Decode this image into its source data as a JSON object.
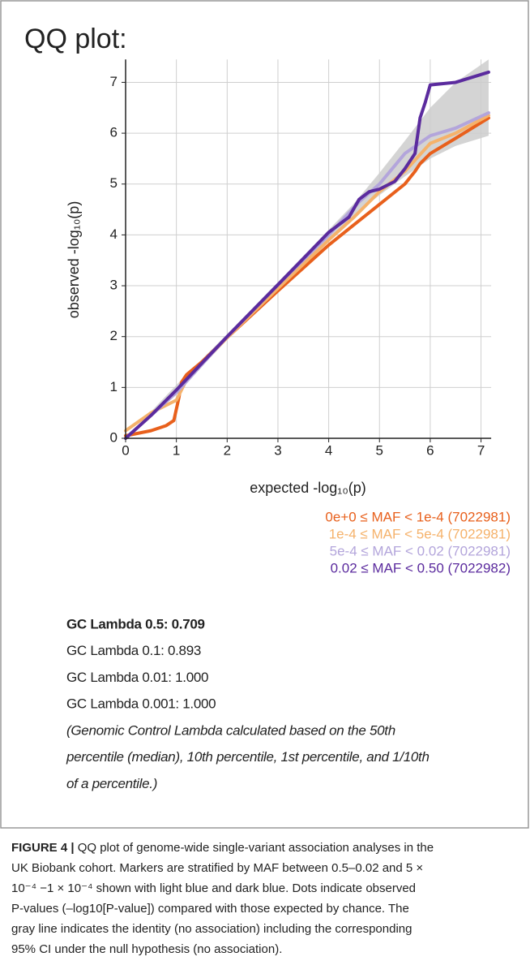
{
  "chart_data": {
    "type": "line",
    "title": "QQ plot:",
    "x_label": "expected -log₁₀(p)",
    "y_label": "observed -log₁₀(p)",
    "xlim": [
      0,
      7.2
    ],
    "ylim": [
      0,
      7.45
    ],
    "xticks": [
      0,
      1,
      2,
      3,
      4,
      5,
      6,
      7
    ],
    "yticks": [
      0,
      1,
      2,
      3,
      4,
      5,
      6,
      7
    ],
    "grid": true,
    "ci_band": {
      "color": "#cccccc",
      "x": [
        0,
        1,
        2,
        3,
        4,
        4.5,
        5,
        5.5,
        6,
        6.5,
        7.15
      ],
      "lower": [
        0,
        0.95,
        1.95,
        2.93,
        3.9,
        4.38,
        4.78,
        5.15,
        5.5,
        5.75,
        5.95
      ],
      "upper": [
        0,
        1.05,
        2.05,
        3.07,
        4.1,
        4.62,
        5.22,
        5.85,
        6.5,
        7.0,
        7.45
      ]
    },
    "series": [
      {
        "name": "0e+0 ≤ MAF < 1e-4 (7022981)",
        "color": "#e8601c",
        "x": [
          0,
          0.5,
          0.8,
          0.95,
          1.05,
          1.1,
          1.2,
          1.5,
          2,
          3,
          4,
          4.5,
          5,
          5.5,
          5.7,
          5.8,
          6,
          6.5,
          7.15
        ],
        "values": [
          0.05,
          0.15,
          0.25,
          0.35,
          0.8,
          1.1,
          1.25,
          1.5,
          1.98,
          2.9,
          3.8,
          4.2,
          4.6,
          5.0,
          5.25,
          5.4,
          5.6,
          5.9,
          6.3
        ]
      },
      {
        "name": "1e-4 ≤ MAF < 5e-4 (7022981)",
        "color": "#f5b26b",
        "x": [
          0,
          0.5,
          1,
          1.2,
          2,
          3,
          4,
          4.5,
          5,
          5.5,
          6,
          6.5,
          7.15
        ],
        "values": [
          0.15,
          0.5,
          0.75,
          1.15,
          1.98,
          2.95,
          3.9,
          4.35,
          4.85,
          5.25,
          5.8,
          6.0,
          6.35
        ]
      },
      {
        "name": "5e-4 ≤ MAF < 0.02 (7022981)",
        "color": "#b3a5db",
        "x": [
          0,
          1,
          2,
          3,
          4,
          4.6,
          5,
          5.5,
          6,
          6.5,
          7.15
        ],
        "values": [
          0,
          0.9,
          2,
          3.02,
          4.0,
          4.65,
          5.0,
          5.6,
          5.95,
          6.1,
          6.4
        ]
      },
      {
        "name": "0.02 ≤ MAF < 0.50 (7022982)",
        "color": "#5b2b9e",
        "x": [
          0,
          0.5,
          1,
          2,
          3,
          4,
          4.4,
          4.6,
          4.8,
          5,
          5.3,
          5.5,
          5.7,
          5.8,
          5.9,
          6,
          6.5,
          7.15
        ],
        "values": [
          0,
          0.45,
          0.95,
          2.0,
          3.02,
          4.05,
          4.35,
          4.7,
          4.85,
          4.9,
          5.05,
          5.3,
          5.6,
          6.3,
          6.6,
          6.95,
          7.0,
          7.2
        ]
      }
    ]
  },
  "stats": {
    "lines": [
      "GC Lambda 0.5: 0.709",
      "GC Lambda 0.1: 0.893",
      "GC Lambda 0.01: 1.000",
      "GC Lambda 0.001: 1.000"
    ],
    "note": [
      "(Genomic Control Lambda calculated based on the 50th",
      "percentile (median), 10th percentile, 1st percentile, and 1/10th",
      "of a percentile.)"
    ]
  },
  "caption": {
    "label": "FIGURE 4 |",
    "lines": [
      " QQ plot of genome-wide single-variant association analyses in the",
      "UK Biobank cohort. Markers are stratified by MAF between 0.5–0.02 and 5 ×",
      "10⁻⁴ −1 × 10⁻⁴ shown with light blue and dark blue. Dots indicate observed",
      "P-values (–log10[P-value]) compared with those expected by chance. The",
      "gray line indicates the identity (no association) including the corresponding",
      "95% CI under the null hypothesis (no association)."
    ]
  }
}
